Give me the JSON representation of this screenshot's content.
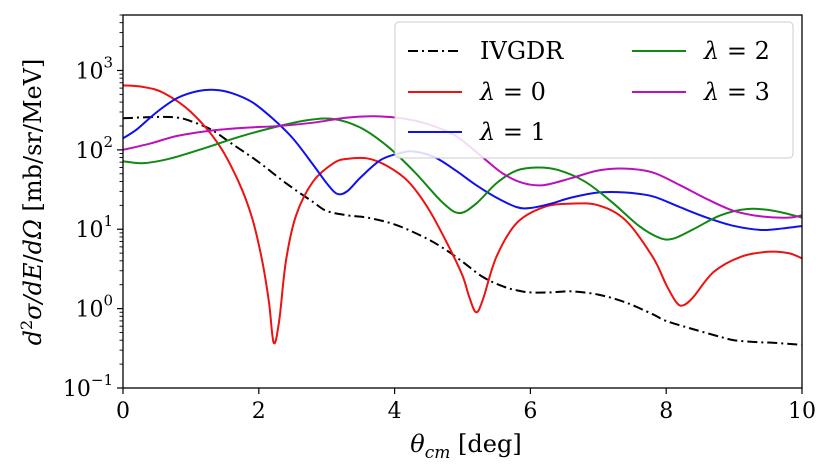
{
  "chart_data": {
    "type": "line",
    "title": "",
    "xlabel": "θcm [deg]",
    "xlabel_main": "θ",
    "xlabel_sub": "cm",
    "xlabel_unit": " [deg]",
    "ylabel": "d²σ/dE/dΩ [mb/sr/MeV]",
    "ylabel_parts": {
      "d1": "d",
      "sup": "2",
      "sigma": "σ/",
      "de": "dE",
      "slash": "/",
      "domega": "dΩ",
      "unit": " [mb/sr/MeV]"
    },
    "xlim": [
      0,
      10
    ],
    "ylim": [
      0.1,
      5000
    ],
    "yscale": "log",
    "grid": false,
    "legend_position": "top-right",
    "x_ticks": [
      0,
      2,
      4,
      6,
      8,
      10
    ],
    "x_tick_labels": [
      "0",
      "2",
      "4",
      "6",
      "8",
      "10"
    ],
    "y_ticks": [
      {
        "value": 0.1,
        "base": "10",
        "exp": "−1"
      },
      {
        "value": 1,
        "base": "10",
        "exp": "0"
      },
      {
        "value": 10,
        "base": "10",
        "exp": "1"
      },
      {
        "value": 100,
        "base": "10",
        "exp": "2"
      },
      {
        "value": 1000,
        "base": "10",
        "exp": "3"
      }
    ],
    "series": [
      {
        "name": "IVGDR",
        "color": "#000000",
        "dash": "dashdot",
        "legend": {
          "main": "IVGDR",
          "val": ""
        },
        "x": [
          0,
          0.5,
          0.8,
          1.0,
          1.3,
          1.6,
          2.0,
          2.4,
          2.8,
          3.0,
          3.3,
          3.6,
          4.0,
          4.4,
          4.7,
          5.0,
          5.3,
          5.6,
          5.8,
          6.0,
          6.3,
          6.6,
          7.0,
          7.4,
          7.8,
          8.0,
          8.4,
          8.8,
          9.0,
          9.3,
          9.6,
          10.0
        ],
        "y": [
          250,
          260,
          255,
          230,
          180,
          120,
          70,
          38,
          22,
          17,
          15,
          14,
          11.5,
          8.2,
          5.9,
          3.9,
          2.5,
          1.9,
          1.7,
          1.6,
          1.6,
          1.65,
          1.5,
          1.2,
          0.85,
          0.7,
          0.55,
          0.44,
          0.4,
          0.38,
          0.37,
          0.35
        ]
      },
      {
        "name": "λ = 0",
        "color": "#ee1111",
        "dash": "solid",
        "legend": {
          "main": "λ",
          "val": " = 0"
        },
        "x": [
          0,
          0.3,
          0.6,
          1.0,
          1.4,
          1.7,
          1.9,
          2.05,
          2.15,
          2.22,
          2.3,
          2.4,
          2.55,
          2.8,
          3.1,
          3.3,
          3.6,
          3.9,
          4.2,
          4.5,
          4.8,
          5.0,
          5.1,
          5.2,
          5.3,
          5.5,
          5.8,
          6.2,
          6.6,
          7.0,
          7.4,
          7.8,
          8.0,
          8.15,
          8.25,
          8.4,
          8.7,
          9.1,
          9.5,
          9.8,
          10.0
        ],
        "y": [
          650,
          620,
          520,
          300,
          120,
          40,
          14,
          4.0,
          1.2,
          0.37,
          0.7,
          4.0,
          15,
          40,
          68,
          77,
          78,
          62,
          40,
          18,
          6,
          2.6,
          1.4,
          0.9,
          1.3,
          4.5,
          12,
          19,
          21,
          20,
          13,
          4.5,
          2.0,
          1.2,
          1.1,
          1.4,
          2.9,
          4.5,
          5.2,
          5.0,
          4.3
        ]
      },
      {
        "name": "λ = 1",
        "color": "#1111ee",
        "dash": "solid",
        "legend": {
          "main": "λ",
          "val": " = 1"
        },
        "x": [
          0,
          0.2,
          0.5,
          0.8,
          1.1,
          1.35,
          1.6,
          1.9,
          2.2,
          2.5,
          2.8,
          3.0,
          3.15,
          3.3,
          3.5,
          3.8,
          4.1,
          4.3,
          4.6,
          4.9,
          5.2,
          5.5,
          5.8,
          6.0,
          6.3,
          6.6,
          7.0,
          7.4,
          7.8,
          8.2,
          8.6,
          9.0,
          9.4,
          9.7,
          10.0
        ],
        "y": [
          140,
          180,
          300,
          450,
          550,
          570,
          520,
          400,
          250,
          140,
          65,
          38,
          28,
          30,
          45,
          75,
          92,
          95,
          80,
          55,
          36,
          25,
          19,
          18.5,
          21,
          25,
          29,
          29,
          26,
          19,
          14,
          11,
          9.8,
          10.2,
          11
        ]
      },
      {
        "name": "λ = 2",
        "color": "#118811",
        "dash": "solid",
        "legend": {
          "main": "λ",
          "val": " = 2"
        },
        "x": [
          0,
          0.3,
          0.7,
          1.2,
          1.7,
          2.2,
          2.7,
          3.1,
          3.5,
          3.9,
          4.3,
          4.7,
          4.95,
          5.2,
          5.5,
          5.8,
          6.1,
          6.4,
          6.8,
          7.2,
          7.6,
          7.9,
          8.1,
          8.4,
          8.8,
          9.2,
          9.6,
          10.0
        ],
        "y": [
          72,
          68,
          78,
          105,
          145,
          190,
          235,
          245,
          190,
          110,
          52,
          22,
          16,
          21,
          38,
          55,
          60,
          56,
          40,
          22,
          11,
          7.8,
          7.6,
          10,
          15,
          18,
          17,
          14
        ]
      },
      {
        "name": "λ = 3",
        "color": "#bb11bb",
        "dash": "solid",
        "legend": {
          "main": "λ",
          "val": " = 3"
        },
        "x": [
          0,
          0.4,
          0.8,
          1.3,
          1.8,
          2.3,
          2.8,
          3.3,
          3.7,
          4.1,
          4.5,
          4.9,
          5.3,
          5.6,
          5.9,
          6.2,
          6.6,
          7.0,
          7.4,
          7.8,
          8.2,
          8.6,
          9.0,
          9.4,
          9.8,
          10.0
        ],
        "y": [
          100,
          120,
          150,
          175,
          190,
          200,
          220,
          255,
          265,
          250,
          210,
          150,
          80,
          50,
          38,
          36,
          44,
          55,
          58,
          52,
          36,
          24,
          17,
          14.5,
          14,
          15
        ]
      }
    ]
  }
}
